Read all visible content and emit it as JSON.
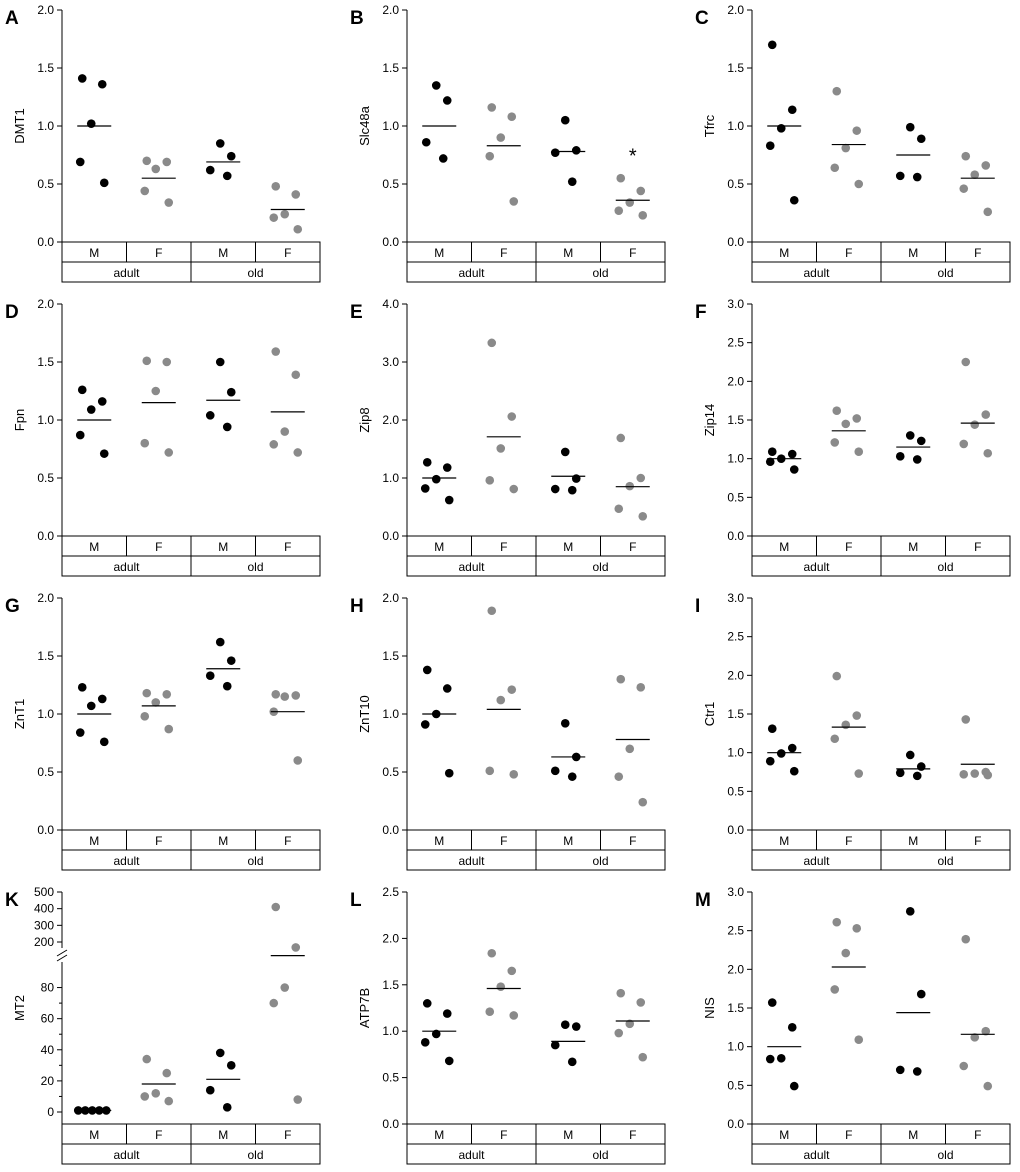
{
  "figure": {
    "group_labels": [
      "adult",
      "old"
    ],
    "sex_labels": [
      "M",
      "F"
    ],
    "colors": {
      "male": "#000000",
      "female": "#8a8a8a",
      "axis": "#000000"
    }
  },
  "chart_data": [
    {
      "type": "scatter",
      "panel": "A",
      "ylabel": "DMT1",
      "ylim": [
        0,
        2
      ],
      "yticks": [
        "0.0",
        "0.5",
        "1.0",
        "1.5",
        "2.0"
      ],
      "groups": [
        {
          "age": "adult",
          "sex": "M",
          "points": [
            1.41,
            1.36,
            1.02,
            0.69,
            0.51
          ],
          "mean": 1.0
        },
        {
          "age": "adult",
          "sex": "F",
          "points": [
            0.7,
            0.69,
            0.63,
            0.44,
            0.34
          ],
          "mean": 0.55
        },
        {
          "age": "old",
          "sex": "M",
          "points": [
            0.85,
            0.74,
            0.62,
            0.57
          ],
          "mean": 0.69
        },
        {
          "age": "old",
          "sex": "F",
          "points": [
            0.48,
            0.41,
            0.24,
            0.21,
            0.11
          ],
          "mean": 0.28
        }
      ]
    },
    {
      "type": "scatter",
      "panel": "B",
      "ylabel": "Slc48a",
      "ylim": [
        0,
        2
      ],
      "yticks": [
        "0.0",
        "0.5",
        "1.0",
        "1.5",
        "2.0"
      ],
      "annotations": [
        {
          "group": 3,
          "text": "*",
          "y": 0.77
        }
      ],
      "groups": [
        {
          "age": "adult",
          "sex": "M",
          "points": [
            1.35,
            1.22,
            0.86,
            0.72
          ],
          "mean": 1.0
        },
        {
          "age": "adult",
          "sex": "F",
          "points": [
            1.16,
            1.08,
            0.9,
            0.74,
            0.35
          ],
          "mean": 0.83
        },
        {
          "age": "old",
          "sex": "M",
          "points": [
            1.05,
            0.79,
            0.77,
            0.52
          ],
          "mean": 0.78
        },
        {
          "age": "old",
          "sex": "F",
          "points": [
            0.55,
            0.44,
            0.34,
            0.27,
            0.23
          ],
          "mean": 0.36
        }
      ]
    },
    {
      "type": "scatter",
      "panel": "C",
      "ylabel": "Tfrc",
      "ylim": [
        0,
        2
      ],
      "yticks": [
        "0.0",
        "0.5",
        "1.0",
        "1.5",
        "2.0"
      ],
      "groups": [
        {
          "age": "adult",
          "sex": "M",
          "points": [
            1.7,
            1.14,
            0.98,
            0.83,
            0.36
          ],
          "mean": 1.0
        },
        {
          "age": "adult",
          "sex": "F",
          "points": [
            1.3,
            0.96,
            0.81,
            0.64,
            0.5
          ],
          "mean": 0.84
        },
        {
          "age": "old",
          "sex": "M",
          "points": [
            0.99,
            0.89,
            0.57,
            0.56
          ],
          "mean": 0.75
        },
        {
          "age": "old",
          "sex": "F",
          "points": [
            0.74,
            0.66,
            0.58,
            0.46,
            0.26
          ],
          "mean": 0.55
        }
      ]
    },
    {
      "type": "scatter",
      "panel": "D",
      "ylabel": "Fpn",
      "ylim": [
        0,
        2
      ],
      "yticks": [
        "0.0",
        "0.5",
        "1.0",
        "1.5",
        "2.0"
      ],
      "groups": [
        {
          "age": "adult",
          "sex": "M",
          "points": [
            1.26,
            1.16,
            1.09,
            0.87,
            0.71
          ],
          "mean": 1.0
        },
        {
          "age": "adult",
          "sex": "F",
          "points": [
            1.51,
            1.5,
            1.25,
            0.8,
            0.72
          ],
          "mean": 1.15
        },
        {
          "age": "old",
          "sex": "M",
          "points": [
            1.5,
            1.24,
            1.04,
            0.94
          ],
          "mean": 1.17
        },
        {
          "age": "old",
          "sex": "F",
          "points": [
            1.59,
            1.39,
            0.9,
            0.79,
            0.72
          ],
          "mean": 1.07
        }
      ]
    },
    {
      "type": "scatter",
      "panel": "E",
      "ylabel": "Zip8",
      "ylim": [
        0,
        4
      ],
      "yticks": [
        "0.0",
        "1.0",
        "2.0",
        "3.0",
        "4.0"
      ],
      "groups": [
        {
          "age": "adult",
          "sex": "M",
          "points": [
            1.27,
            1.18,
            0.98,
            0.82,
            0.62
          ],
          "mean": 1.0
        },
        {
          "age": "adult",
          "sex": "F",
          "points": [
            3.33,
            2.06,
            1.51,
            0.96,
            0.81
          ],
          "mean": 1.71
        },
        {
          "age": "old",
          "sex": "M",
          "points": [
            1.45,
            0.99,
            0.81,
            0.79
          ],
          "mean": 1.03
        },
        {
          "age": "old",
          "sex": "F",
          "points": [
            1.69,
            1.0,
            0.86,
            0.47,
            0.34
          ],
          "mean": 0.85
        }
      ]
    },
    {
      "type": "scatter",
      "panel": "F",
      "ylabel": "Zip14",
      "ylim": [
        0,
        3
      ],
      "yticks": [
        "0.0",
        "0.5",
        "1.0",
        "1.5",
        "2.0",
        "2.5",
        "3.0"
      ],
      "groups": [
        {
          "age": "adult",
          "sex": "M",
          "points": [
            1.09,
            1.06,
            1.0,
            0.96,
            0.86
          ],
          "mean": 1.0
        },
        {
          "age": "adult",
          "sex": "F",
          "points": [
            1.62,
            1.52,
            1.45,
            1.21,
            1.09
          ],
          "mean": 1.36
        },
        {
          "age": "old",
          "sex": "M",
          "points": [
            1.3,
            1.23,
            1.03,
            0.99
          ],
          "mean": 1.15
        },
        {
          "age": "old",
          "sex": "F",
          "points": [
            2.25,
            1.57,
            1.44,
            1.19,
            1.07
          ],
          "mean": 1.46
        }
      ]
    },
    {
      "type": "scatter",
      "panel": "G",
      "ylabel": "ZnT1",
      "ylim": [
        0,
        2
      ],
      "yticks": [
        "0.0",
        "0.5",
        "1.0",
        "1.5",
        "2.0"
      ],
      "groups": [
        {
          "age": "adult",
          "sex": "M",
          "points": [
            1.23,
            1.13,
            1.07,
            0.84,
            0.76
          ],
          "mean": 1.0
        },
        {
          "age": "adult",
          "sex": "F",
          "points": [
            1.18,
            1.17,
            1.1,
            0.98,
            0.87
          ],
          "mean": 1.07
        },
        {
          "age": "old",
          "sex": "M",
          "points": [
            1.62,
            1.46,
            1.33,
            1.24
          ],
          "mean": 1.39
        },
        {
          "age": "old",
          "sex": "F",
          "points": [
            1.17,
            1.16,
            1.15,
            1.02,
            0.6
          ],
          "mean": 1.02
        }
      ]
    },
    {
      "type": "scatter",
      "panel": "H",
      "ylabel": "ZnT10",
      "ylim": [
        0,
        2
      ],
      "yticks": [
        "0.0",
        "0.5",
        "1.0",
        "1.5",
        "2.0"
      ],
      "groups": [
        {
          "age": "adult",
          "sex": "M",
          "points": [
            1.38,
            1.22,
            1.0,
            0.91,
            0.49
          ],
          "mean": 1.0
        },
        {
          "age": "adult",
          "sex": "F",
          "points": [
            1.89,
            1.21,
            1.12,
            0.51,
            0.48
          ],
          "mean": 1.04
        },
        {
          "age": "old",
          "sex": "M",
          "points": [
            0.92,
            0.63,
            0.51,
            0.46
          ],
          "mean": 0.63
        },
        {
          "age": "old",
          "sex": "F",
          "points": [
            1.3,
            1.23,
            0.7,
            0.46,
            0.24
          ],
          "mean": 0.78
        }
      ]
    },
    {
      "type": "scatter",
      "panel": "I",
      "ylabel": "Ctr1",
      "ylim": [
        0,
        3
      ],
      "yticks": [
        "0.0",
        "0.5",
        "1.0",
        "1.5",
        "2.0",
        "2.5",
        "3.0"
      ],
      "groups": [
        {
          "age": "adult",
          "sex": "M",
          "points": [
            1.31,
            1.06,
            0.99,
            0.89,
            0.76
          ],
          "mean": 1.0
        },
        {
          "age": "adult",
          "sex": "F",
          "points": [
            1.99,
            1.48,
            1.36,
            1.18,
            0.73
          ],
          "mean": 1.33
        },
        {
          "age": "old",
          "sex": "M",
          "points": [
            0.97,
            0.82,
            0.74,
            0.7
          ],
          "mean": 0.79
        },
        {
          "age": "old",
          "sex": "F",
          "points": [
            1.43,
            0.75,
            0.73,
            0.72,
            0.71
          ],
          "mean": 0.85
        }
      ]
    },
    {
      "type": "scatter",
      "panel": "K",
      "ylabel": "MT2",
      "scale": "broken",
      "segments": [
        {
          "range": [
            0,
            90
          ],
          "ticks": [
            "0",
            "20",
            "40",
            "60",
            "80"
          ]
        },
        {
          "range": [
            200,
            500
          ],
          "ticks": [
            "200",
            "300",
            "400",
            "500"
          ]
        }
      ],
      "groups": [
        {
          "age": "adult",
          "sex": "M",
          "points": [
            1.0,
            1.0,
            1.0,
            1.0,
            1.0
          ],
          "mean": 1.0
        },
        {
          "age": "adult",
          "sex": "F",
          "points": [
            34,
            25,
            12,
            10,
            7
          ],
          "mean": 18
        },
        {
          "age": "old",
          "sex": "M",
          "points": [
            38,
            30,
            14,
            3
          ],
          "mean": 21
        },
        {
          "age": "old",
          "sex": "F",
          "points": [
            410,
            180,
            80,
            70,
            8
          ],
          "mean": 150
        }
      ]
    },
    {
      "type": "scatter",
      "panel": "L",
      "ylabel": "ATP7B",
      "ylim": [
        0,
        2.5
      ],
      "yticks": [
        "0.0",
        "0.5",
        "1.0",
        "1.5",
        "2.0",
        "2.5"
      ],
      "groups": [
        {
          "age": "adult",
          "sex": "M",
          "points": [
            1.3,
            1.19,
            0.97,
            0.88,
            0.68
          ],
          "mean": 1.0
        },
        {
          "age": "adult",
          "sex": "F",
          "points": [
            1.84,
            1.65,
            1.48,
            1.21,
            1.17
          ],
          "mean": 1.46
        },
        {
          "age": "old",
          "sex": "M",
          "points": [
            1.07,
            1.05,
            0.85,
            0.67
          ],
          "mean": 0.89
        },
        {
          "age": "old",
          "sex": "F",
          "points": [
            1.41,
            1.31,
            1.08,
            0.98,
            0.72
          ],
          "mean": 1.11
        }
      ]
    },
    {
      "type": "scatter",
      "panel": "M",
      "ylabel": "NIS",
      "ylim": [
        0,
        3
      ],
      "yticks": [
        "0.0",
        "0.5",
        "1.0",
        "1.5",
        "2.0",
        "2.5",
        "3.0"
      ],
      "groups": [
        {
          "age": "adult",
          "sex": "M",
          "points": [
            1.57,
            1.25,
            0.85,
            0.84,
            0.49
          ],
          "mean": 1.0
        },
        {
          "age": "adult",
          "sex": "F",
          "points": [
            2.61,
            2.53,
            2.21,
            1.74,
            1.09
          ],
          "mean": 2.03
        },
        {
          "age": "old",
          "sex": "M",
          "points": [
            2.75,
            1.68,
            0.7,
            0.68
          ],
          "mean": 1.44
        },
        {
          "age": "old",
          "sex": "F",
          "points": [
            2.39,
            1.2,
            1.12,
            0.75,
            0.49
          ],
          "mean": 1.16
        }
      ]
    }
  ]
}
